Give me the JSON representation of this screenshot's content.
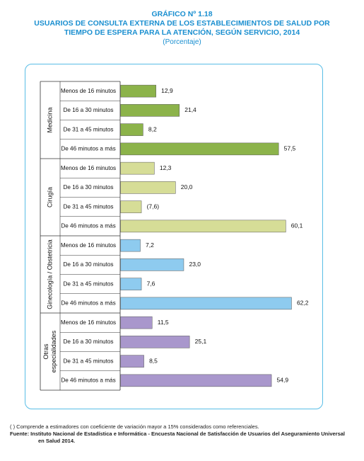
{
  "header": {
    "figure_number": "GRÁFICO Nº 1.18",
    "title_line1": "USUARIOS DE CONSULTA EXTERNA DE LOS ESTABLECIMIENTOS DE SALUD POR",
    "title_line2": "TIEMPO DE ESPERA PARA LA ATENCIÓN, SEGÚN SERVICIO,  2014",
    "unit": "(Porcentaje)"
  },
  "chart_data": {
    "type": "bar",
    "orientation": "horizontal",
    "grid": false,
    "legend": "none",
    "groups": [
      {
        "name": "Medicina",
        "color": "#8cb34a",
        "categories": [
          "Menos de 16 minutos",
          "De 16 a 30 minutos",
          "De 31 a 45 minutos",
          "De 46 minutos a más"
        ],
        "values": [
          12.9,
          21.4,
          8.2,
          57.5
        ],
        "labels": [
          "12,9",
          "21,4",
          "8,2",
          "57,5"
        ]
      },
      {
        "name": "Cirugía",
        "color": "#d6dd97",
        "categories": [
          "Menos de 16 minutos",
          "De 16 a 30 minutos",
          "De 31 a 45 minutos",
          "De 46 minutos a más"
        ],
        "values": [
          12.3,
          20.0,
          7.6,
          60.1
        ],
        "labels": [
          "12,3",
          "20,0",
          "(7,6)",
          "60,1"
        ]
      },
      {
        "name": "Ginecología / Obstetricia",
        "color": "#8ecbef",
        "categories": [
          "Menos de 16 minutos",
          "De 16 a 30 minutos",
          "De 31 a 45 minutos",
          "De 46 minutos a más"
        ],
        "values": [
          7.2,
          23.0,
          7.6,
          62.2
        ],
        "labels": [
          "7,2",
          "23,0",
          "7,6",
          "62,2"
        ]
      },
      {
        "name": "Otras especialidades",
        "color": "#a997cc",
        "categories": [
          "Menos de 16 minutos",
          "De 16 a 30 minutos",
          "De 31 a 45 minutos",
          "De 46 minutos a más"
        ],
        "values": [
          11.5,
          25.1,
          8.5,
          54.9
        ],
        "labels": [
          "11,5",
          "25,1",
          "8,5",
          "54,9"
        ]
      }
    ]
  },
  "footer": {
    "note": "( ) Comprende a estimadores con coeficiente de variación mayor a 15% considerados como referenciales.",
    "source_line1": "Fuente: Instituto Nacional de Estadística e Informática - Encuesta Nacional de Satisfacción de Usuarios del Aseguramiento Universal",
    "source_line2": "en Salud 2014."
  }
}
